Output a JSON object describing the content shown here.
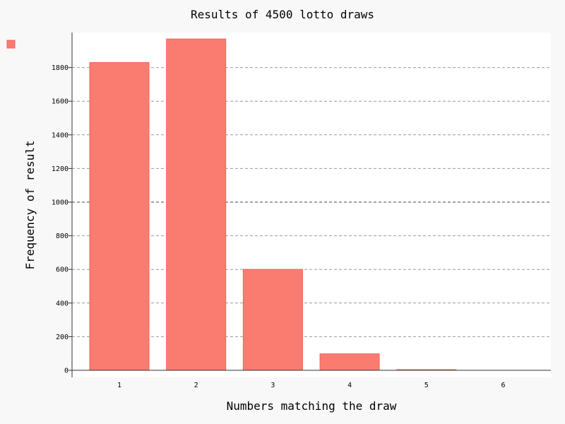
{
  "chart_data": {
    "type": "bar",
    "title": "Results of 4500 lotto draws",
    "xlabel": "Numbers matching the draw",
    "ylabel": "Frequency of result",
    "categories": [
      "1",
      "2",
      "3",
      "4",
      "5",
      "6"
    ],
    "series": [
      {
        "values": [
          1830,
          1970,
          600,
          98,
          4,
          0
        ],
        "color": "#fa7c70"
      }
    ],
    "ylim": [
      0,
      2000
    ],
    "y_ticks": [
      "0",
      "200",
      "400",
      "600",
      "800",
      "1000",
      "1200",
      "1400",
      "1600",
      "1800"
    ],
    "grid": true,
    "legend": "top-left",
    "colors": {
      "bar": "#fa7c70",
      "bar_stroke": "#f2625a",
      "plot_bg": "#ffffff",
      "page_bg": "#f8f8f8"
    }
  }
}
